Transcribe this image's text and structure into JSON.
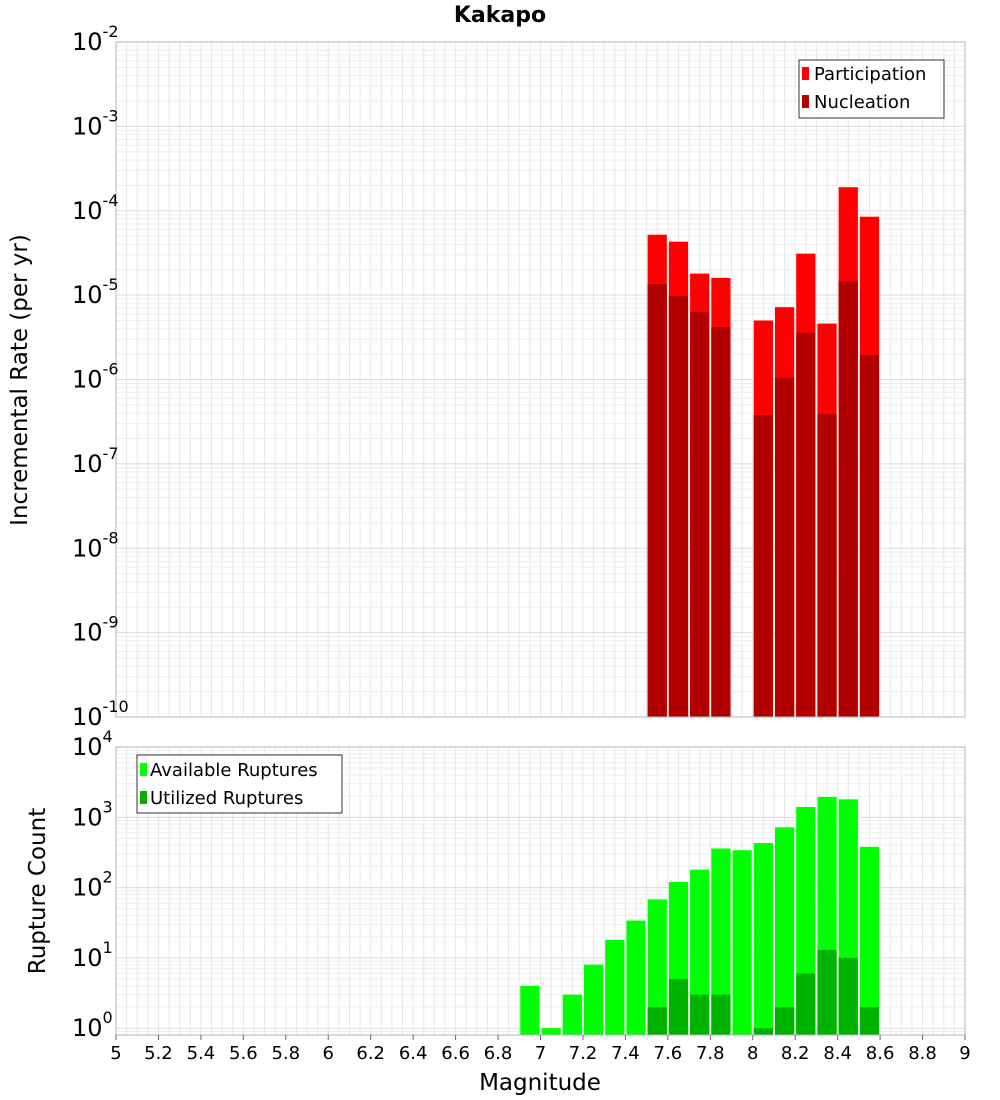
{
  "chart_data": [
    {
      "type": "bar",
      "title": "Kakapo",
      "xlabel": "",
      "ylabel": "Incremental Rate (per yr)",
      "yscale": "log",
      "ylim": [
        1e-10,
        0.01
      ],
      "xlim": [
        5,
        9
      ],
      "ytick_exponents": [
        "-2",
        "-3",
        "-4",
        "-5",
        "-6",
        "-7",
        "-8",
        "-9",
        "-10"
      ],
      "grid": true,
      "legend": "top-right",
      "bar_width": 0.1,
      "series": [
        {
          "name": "Participation",
          "color": "#ff0000",
          "x": [
            7.55,
            7.65,
            7.75,
            7.85,
            8.05,
            8.15,
            8.25,
            8.35,
            8.45,
            8.55
          ],
          "values": [
            5.2e-05,
            4.3e-05,
            1.8e-05,
            1.6e-05,
            5e-06,
            7.2e-06,
            3.1e-05,
            4.6e-06,
            0.00019,
            8.5e-05
          ]
        },
        {
          "name": "Nucleation",
          "color": "#b20000",
          "x": [
            7.55,
            7.65,
            7.75,
            7.85,
            8.05,
            8.15,
            8.25,
            8.35,
            8.45,
            8.55
          ],
          "values": [
            1.35e-05,
            9.8e-06,
            6.3e-06,
            4.2e-06,
            3.8e-07,
            1.05e-06,
            3.6e-06,
            3.9e-07,
            1.45e-05,
            1.95e-06
          ]
        }
      ]
    },
    {
      "type": "bar",
      "title": "",
      "xlabel": "Magnitude",
      "ylabel": "Rupture Count",
      "yscale": "log",
      "ylim": [
        0.8,
        10000
      ],
      "xlim": [
        5,
        9
      ],
      "ytick_exponents": [
        "0",
        "1",
        "2",
        "3",
        "4"
      ],
      "xtick_labels": [
        "5",
        "5.2",
        "5.4",
        "5.6",
        "5.8",
        "6",
        "6.2",
        "6.4",
        "6.6",
        "6.8",
        "7",
        "7.2",
        "7.4",
        "7.6",
        "7.8",
        "8",
        "8.2",
        "8.4",
        "8.6",
        "8.8",
        "9"
      ],
      "grid": true,
      "legend": "top-left",
      "bar_width": 0.1,
      "series": [
        {
          "name": "Available Ruptures",
          "color": "#00ff00",
          "x": [
            6.95,
            7.05,
            7.15,
            7.25,
            7.35,
            7.45,
            7.55,
            7.65,
            7.75,
            7.85,
            7.95,
            8.05,
            8.15,
            8.25,
            8.35,
            8.45,
            8.55
          ],
          "values": [
            4,
            1,
            3,
            8,
            18,
            34,
            68,
            120,
            180,
            360,
            340,
            430,
            720,
            1400,
            1950,
            1800,
            380
          ]
        },
        {
          "name": "Utilized Ruptures",
          "color": "#00b200",
          "x": [
            7.55,
            7.65,
            7.75,
            7.85,
            8.05,
            8.15,
            8.25,
            8.35,
            8.45,
            8.55
          ],
          "values": [
            2,
            5,
            3,
            3,
            1,
            2,
            6,
            13,
            10,
            2
          ]
        }
      ]
    }
  ]
}
